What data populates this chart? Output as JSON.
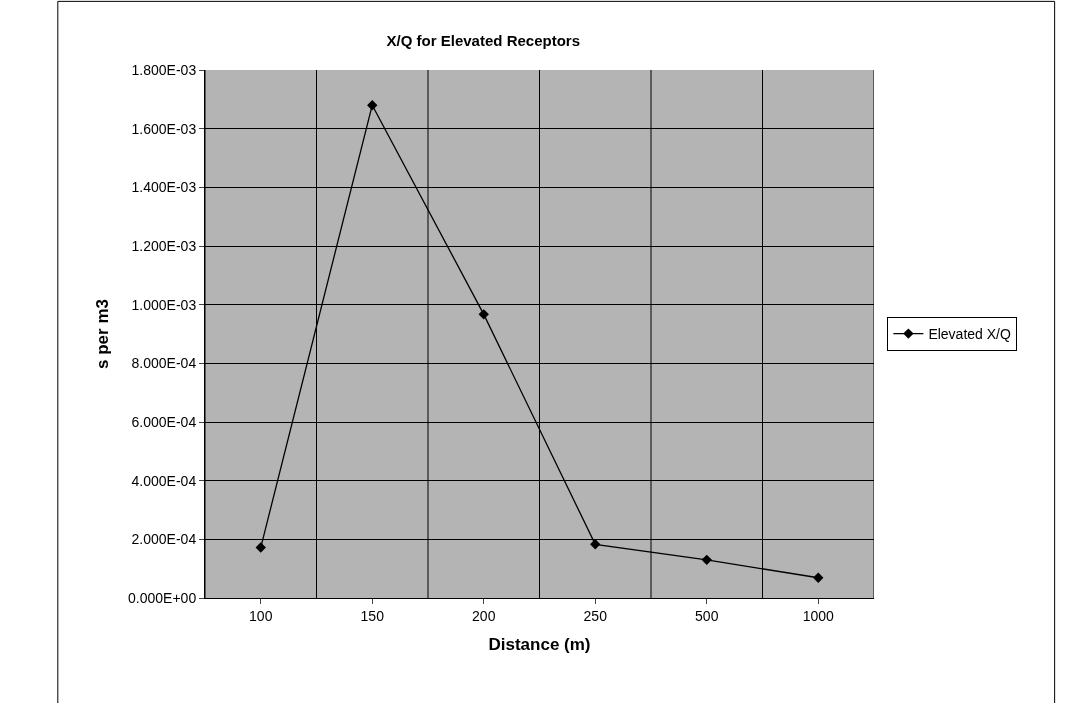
{
  "chart_data": {
    "type": "line",
    "title": "X/Q for Elevated Receptors",
    "xlabel": "Distance (m)",
    "ylabel": "s per m3",
    "categories": [
      "100",
      "150",
      "200",
      "250",
      "500",
      "1000"
    ],
    "series": [
      {
        "name": "Elevated X/Q",
        "color": "#000000",
        "values": [
          0.000172,
          0.00168,
          0.000967,
          0.000183,
          0.00013,
          6.9e-05
        ]
      }
    ],
    "ylim": [
      0,
      0.0018
    ],
    "yticks": [
      {
        "value": 0,
        "label": "0.000E+00"
      },
      {
        "value": 0.0002,
        "label": "2.000E-04"
      },
      {
        "value": 0.0004,
        "label": "4.000E-04"
      },
      {
        "value": 0.0006,
        "label": "6.000E-04"
      },
      {
        "value": 0.0008,
        "label": "8.000E-04"
      },
      {
        "value": 0.001,
        "label": "1.000E-03"
      },
      {
        "value": 0.0012,
        "label": "1.200E-03"
      },
      {
        "value": 0.0014,
        "label": "1.400E-03"
      },
      {
        "value": 0.0016,
        "label": "1.600E-03"
      },
      {
        "value": 0.0018,
        "label": "1.800E-03"
      }
    ],
    "grid": true,
    "legend": "right",
    "marker": "diamond",
    "line_style": "solid"
  }
}
